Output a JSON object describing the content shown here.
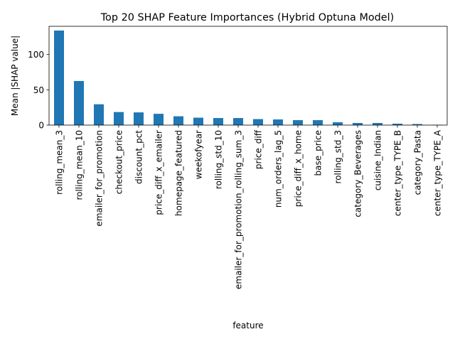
{
  "chart_data": {
    "type": "bar",
    "title": "Top 20 SHAP Feature Importances (Hybrid Optuna Model)",
    "xlabel": "feature",
    "ylabel": "Mean |SHAP value|",
    "ylim": [
      0,
      140
    ],
    "yticks": [
      0,
      50,
      100
    ],
    "grid": false,
    "legend": "none",
    "bar_color": "#1f77b4",
    "categories": [
      "rolling_mean_3",
      "rolling_mean_10",
      "emailer_for_promotion",
      "checkout_price",
      "discount_pct",
      "price_diff_x_emailer",
      "homepage_featured",
      "weekofyear",
      "rolling_std_10",
      "emailer_for_promotion_rolling_sum_3",
      "price_diff",
      "num_orders_lag_5",
      "price_diff_x_home",
      "base_price",
      "rolling_std_3",
      "category_Beverages",
      "cuisine_Indian",
      "center_type_TYPE_B",
      "category_Pasta",
      "center_type_TYPE_A"
    ],
    "values": [
      134,
      62.5,
      29.5,
      18.5,
      18,
      16,
      12.5,
      10.5,
      10,
      10,
      8.5,
      8,
      7,
      7,
      4,
      3,
      3,
      2,
      1.5,
      0.5
    ]
  }
}
